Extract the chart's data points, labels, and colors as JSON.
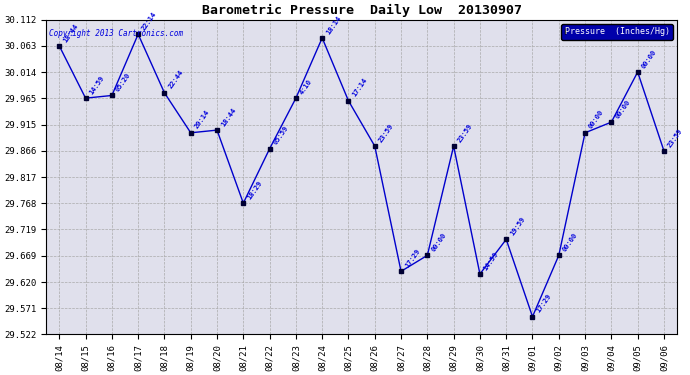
{
  "title": "Barometric Pressure  Daily Low  20130907",
  "copyright": "Copyright 2013 Cartronics.com",
  "legend_label": "Pressure  (Inches/Hg)",
  "dates": [
    "08/14",
    "08/15",
    "08/16",
    "08/17",
    "08/18",
    "08/19",
    "08/20",
    "08/21",
    "08/22",
    "08/23",
    "08/24",
    "08/25",
    "08/26",
    "08/27",
    "08/28",
    "08/29",
    "08/30",
    "08/31",
    "09/01",
    "09/02",
    "09/03",
    "09/04",
    "09/05",
    "09/06"
  ],
  "values": [
    30.063,
    29.965,
    29.97,
    30.085,
    29.975,
    29.9,
    29.905,
    29.768,
    29.87,
    29.965,
    30.078,
    29.96,
    29.875,
    29.64,
    29.67,
    29.875,
    29.635,
    29.7,
    29.555,
    29.67,
    29.9,
    29.92,
    30.014,
    29.866
  ],
  "time_labels": [
    "18:44",
    "14:59",
    "05:20",
    "22:14",
    "22:44",
    "20:14",
    "18:44",
    "18:29",
    "05:59",
    "4:10",
    "18:14",
    "17:14",
    "23:59",
    "17:29",
    "00:00",
    "23:59",
    "14:59",
    "19:59",
    "17:29",
    "00:00",
    "00:00",
    "00:00",
    "00:00",
    "23:59"
  ],
  "ylim_min": 29.522,
  "ylim_max": 30.112,
  "yticks": [
    29.522,
    29.571,
    29.62,
    29.669,
    29.719,
    29.768,
    29.817,
    29.866,
    29.915,
    29.965,
    30.014,
    30.063,
    30.112
  ],
  "line_color": "#0000cc",
  "marker_color": "#000033",
  "bg_color": "#e0e0ec",
  "grid_color": "#aaaaaa",
  "title_color": "#000000",
  "label_color": "#0000dd",
  "legend_bg": "#0000aa",
  "legend_fg": "#ffffff",
  "fig_width": 6.9,
  "fig_height": 3.75,
  "dpi": 100
}
